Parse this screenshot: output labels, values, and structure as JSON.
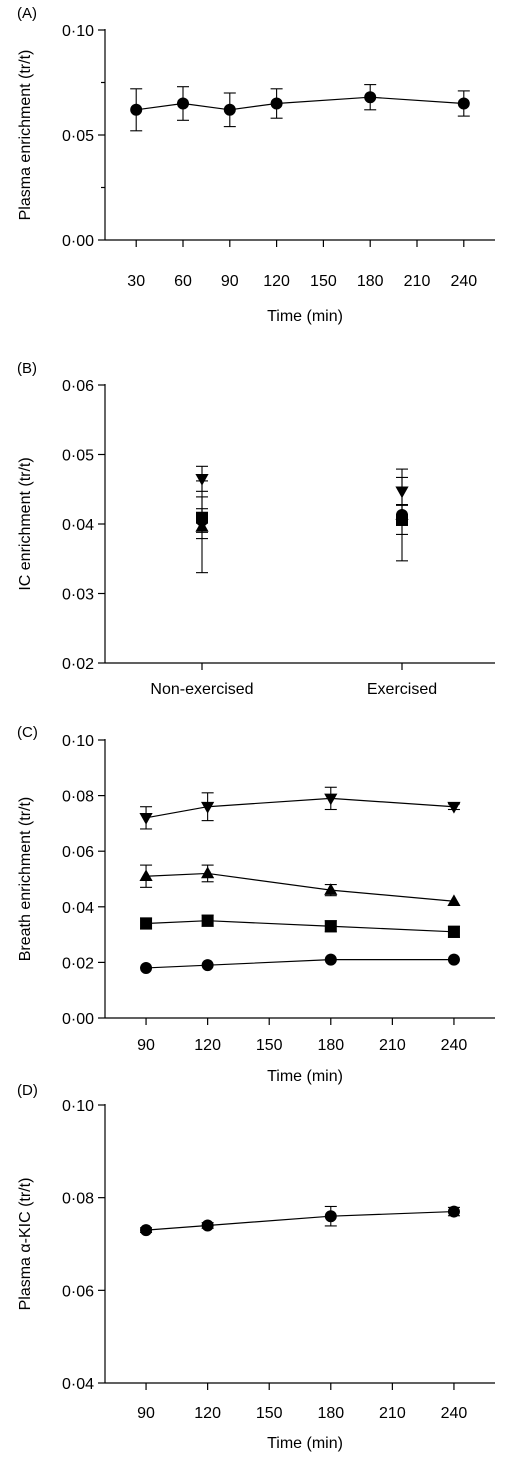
{
  "chart_data": [
    {
      "panel": "(A)",
      "type": "line",
      "xlabel": "Time (min)",
      "ylabel": "Plasma enrichment (tr/t)",
      "x": [
        30,
        60,
        90,
        120,
        180,
        240
      ],
      "xticks": [
        30,
        60,
        90,
        120,
        150,
        180,
        210,
        240
      ],
      "xlim": [
        10,
        260
      ],
      "ylim": [
        0.0,
        0.1
      ],
      "yticks": [
        0.0,
        0.05,
        0.1
      ],
      "ytick_labels": [
        "0·00",
        "0·05",
        "0·10"
      ],
      "yminor": [
        0.025,
        0.075
      ],
      "series": [
        {
          "marker": "circle",
          "y": [
            0.062,
            0.065,
            0.062,
            0.065,
            0.068,
            0.065
          ],
          "err": [
            0.01,
            0.008,
            0.008,
            0.007,
            0.006,
            0.006
          ]
        }
      ]
    },
    {
      "panel": "(B)",
      "type": "scatter",
      "ylabel": "IC enrichment (tr/t)",
      "categories": [
        "Non-exercised",
        "Exercised"
      ],
      "ylim": [
        0.02,
        0.06
      ],
      "yticks": [
        0.02,
        0.03,
        0.04,
        0.05,
        0.06
      ],
      "ytick_labels": [
        "0·02",
        "0·03",
        "0·04",
        "0·05",
        "0·06"
      ],
      "series": [
        {
          "marker": "circle",
          "y": [
            0.0405,
            0.0413
          ],
          "err": [
            0.0017,
            0.0015
          ]
        },
        {
          "marker": "square",
          "y": [
            0.0409,
            0.0406
          ],
          "err": [
            0.003,
            0.0021
          ]
        },
        {
          "marker": "triangle-up",
          "y": [
            0.0396,
            0.0413
          ],
          "err": [
            0.0066,
            0.0066
          ]
        },
        {
          "marker": "triangle-down",
          "y": [
            0.0465,
            0.0447
          ],
          "err": [
            0.0018,
            0.002
          ]
        }
      ]
    },
    {
      "panel": "(C)",
      "type": "line",
      "xlabel": "Time (min)",
      "ylabel": "Breath enrichment (tr/t)",
      "x": [
        90,
        120,
        180,
        240
      ],
      "xticks": [
        90,
        120,
        150,
        180,
        210,
        240
      ],
      "xlim": [
        70,
        260
      ],
      "ylim": [
        0.0,
        0.1
      ],
      "yticks": [
        0.0,
        0.02,
        0.04,
        0.06,
        0.08,
        0.1
      ],
      "ytick_labels": [
        "0·00",
        "0·02",
        "0·04",
        "0·06",
        "0·08",
        "0·10"
      ],
      "series": [
        {
          "marker": "triangle-down",
          "y": [
            0.072,
            0.076,
            0.079,
            0.076
          ],
          "err": [
            0.004,
            0.005,
            0.004,
            0.001
          ]
        },
        {
          "marker": "triangle-up",
          "y": [
            0.051,
            0.052,
            0.046,
            0.042
          ],
          "err": [
            0.004,
            0.003,
            0.002,
            0.0
          ]
        },
        {
          "marker": "square",
          "y": [
            0.034,
            0.035,
            0.033,
            0.031
          ],
          "err": [
            0.002,
            0.002,
            0.002,
            0.002
          ]
        },
        {
          "marker": "circle",
          "y": [
            0.018,
            0.019,
            0.021,
            0.021
          ],
          "err": [
            0.0,
            0.0,
            0.0,
            0.0
          ]
        }
      ]
    },
    {
      "panel": "(D)",
      "type": "line",
      "xlabel": "Time (min)",
      "ylabel": "Plasma α-KIC (tr/t)",
      "x": [
        90,
        120,
        180,
        240
      ],
      "xticks": [
        90,
        120,
        150,
        180,
        210,
        240
      ],
      "xlim": [
        70,
        260
      ],
      "ylim": [
        0.04,
        0.1
      ],
      "yticks": [
        0.04,
        0.06,
        0.08,
        0.1
      ],
      "ytick_labels": [
        "0·04",
        "0·06",
        "0·08",
        "0·10"
      ],
      "series": [
        {
          "marker": "circle",
          "y": [
            0.073,
            0.074,
            0.076,
            0.077
          ],
          "err": [
            0.0005,
            0.0006,
            0.0021,
            0.0009
          ]
        }
      ]
    }
  ]
}
